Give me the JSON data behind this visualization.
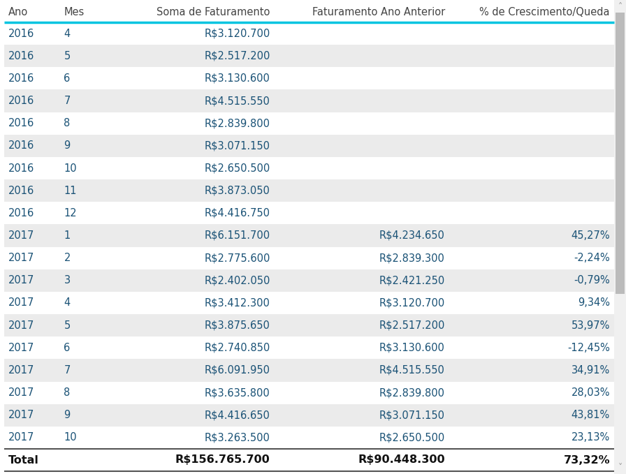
{
  "headers": [
    "Ano",
    "Mes",
    "Soma de Faturamento",
    "Faturamento Ano Anterior",
    "% de Crescimento/Queda"
  ],
  "rows": [
    [
      "2016",
      "4",
      "R$3.120.700",
      "",
      ""
    ],
    [
      "2016",
      "5",
      "R$2.517.200",
      "",
      ""
    ],
    [
      "2016",
      "6",
      "R$3.130.600",
      "",
      ""
    ],
    [
      "2016",
      "7",
      "R$4.515.550",
      "",
      ""
    ],
    [
      "2016",
      "8",
      "R$2.839.800",
      "",
      ""
    ],
    [
      "2016",
      "9",
      "R$3.071.150",
      "",
      ""
    ],
    [
      "2016",
      "10",
      "R$2.650.500",
      "",
      ""
    ],
    [
      "2016",
      "11",
      "R$3.873.050",
      "",
      ""
    ],
    [
      "2016",
      "12",
      "R$4.416.750",
      "",
      ""
    ],
    [
      "2017",
      "1",
      "R$6.151.700",
      "R$4.234.650",
      "45,27%"
    ],
    [
      "2017",
      "2",
      "R$2.775.600",
      "R$2.839.300",
      "-2,24%"
    ],
    [
      "2017",
      "3",
      "R$2.402.050",
      "R$2.421.250",
      "-0,79%"
    ],
    [
      "2017",
      "4",
      "R$3.412.300",
      "R$3.120.700",
      "9,34%"
    ],
    [
      "2017",
      "5",
      "R$3.875.650",
      "R$2.517.200",
      "53,97%"
    ],
    [
      "2017",
      "6",
      "R$2.740.850",
      "R$3.130.600",
      "-12,45%"
    ],
    [
      "2017",
      "7",
      "R$6.091.950",
      "R$4.515.550",
      "34,91%"
    ],
    [
      "2017",
      "8",
      "R$3.635.800",
      "R$2.839.800",
      "28,03%"
    ],
    [
      "2017",
      "9",
      "R$4.416.650",
      "R$3.071.150",
      "43,81%"
    ],
    [
      "2017",
      "10",
      "R$3.263.500",
      "R$2.650.500",
      "23,13%"
    ]
  ],
  "total_row": [
    "Total",
    "",
    "R$156.765.700",
    "R$90.448.300",
    "73,32%"
  ],
  "header_text_color": "#444444",
  "header_bg": "#ffffff",
  "row_bg_even": "#ebebeb",
  "row_bg_odd": "#ffffff",
  "total_bg": "#ffffff",
  "data_text_color": "#1a5276",
  "total_text_color": "#111111",
  "header_bottom_line_color": "#00c4e0",
  "total_top_line_color": "#555555",
  "col_aligns": [
    "left",
    "left",
    "right",
    "right",
    "right"
  ],
  "header_fontsize": 10.5,
  "data_fontsize": 10.5,
  "total_fontsize": 11.5,
  "fig_bg": "#ffffff",
  "scrollbar_track": "#f0f0f0",
  "scrollbar_thumb": "#bbbbbb",
  "scrollbar_arrow": "#999999"
}
